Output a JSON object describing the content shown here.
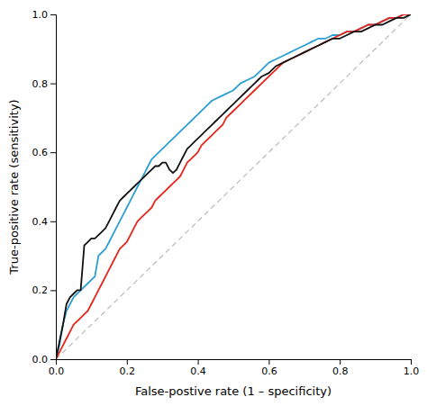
{
  "chart_data": {
    "type": "line",
    "xlabel": "False-postive rate (1 – specificity)",
    "ylabel": "True-positive rate (sensitivity)",
    "xlim": [
      0,
      1.0
    ],
    "ylim": [
      0,
      1.0
    ],
    "xticks": [
      {
        "value": 0,
        "label": "0.0"
      },
      {
        "value": 0.2,
        "label": "0.2"
      },
      {
        "value": 0.4,
        "label": "0.4"
      },
      {
        "value": 0.6,
        "label": "0.6"
      },
      {
        "value": 0.8,
        "label": "0.8"
      },
      {
        "value": 1.0,
        "label": "1.0"
      }
    ],
    "yticks": [
      {
        "value": 0,
        "label": "0.0"
      },
      {
        "value": 0.2,
        "label": "0.2"
      },
      {
        "value": 0.4,
        "label": "0.4"
      },
      {
        "value": 0.6,
        "label": "0.6"
      },
      {
        "value": 0.8,
        "label": "0.8"
      },
      {
        "value": 1.0,
        "label": "1.0"
      }
    ],
    "grid": false,
    "series": [
      {
        "color": "#bbbbbb",
        "line_style": "dashed",
        "x": [
          0,
          1
        ],
        "values": [
          0,
          1
        ]
      },
      {
        "color": "#2b9fd4",
        "line_style": "solid",
        "x": [
          0.0,
          0.01,
          0.02,
          0.03,
          0.04,
          0.05,
          0.06,
          0.07,
          0.08,
          0.09,
          0.1,
          0.11,
          0.12,
          0.13,
          0.14,
          0.15,
          0.16,
          0.17,
          0.18,
          0.19,
          0.2,
          0.21,
          0.22,
          0.23,
          0.24,
          0.25,
          0.26,
          0.27,
          0.28,
          0.29,
          0.3,
          0.31,
          0.32,
          0.33,
          0.34,
          0.35,
          0.36,
          0.37,
          0.38,
          0.39,
          0.4,
          0.42,
          0.44,
          0.46,
          0.48,
          0.5,
          0.52,
          0.54,
          0.56,
          0.58,
          0.6,
          0.62,
          0.64,
          0.66,
          0.68,
          0.7,
          0.72,
          0.74,
          0.76,
          0.78,
          0.8,
          0.82,
          0.84,
          0.86,
          0.88,
          0.9,
          0.92,
          0.94,
          0.96,
          0.98,
          1.0
        ],
        "values": [
          0.0,
          0.04,
          0.1,
          0.14,
          0.16,
          0.18,
          0.19,
          0.2,
          0.21,
          0.22,
          0.23,
          0.24,
          0.3,
          0.31,
          0.32,
          0.34,
          0.36,
          0.38,
          0.4,
          0.42,
          0.44,
          0.46,
          0.48,
          0.5,
          0.52,
          0.54,
          0.56,
          0.58,
          0.59,
          0.6,
          0.61,
          0.62,
          0.63,
          0.64,
          0.65,
          0.66,
          0.67,
          0.68,
          0.69,
          0.7,
          0.71,
          0.73,
          0.75,
          0.76,
          0.77,
          0.78,
          0.8,
          0.81,
          0.82,
          0.84,
          0.86,
          0.87,
          0.88,
          0.89,
          0.9,
          0.91,
          0.92,
          0.93,
          0.93,
          0.94,
          0.94,
          0.95,
          0.95,
          0.96,
          0.97,
          0.97,
          0.98,
          0.99,
          0.99,
          1.0,
          1.0
        ]
      },
      {
        "color": "#e8231a",
        "line_style": "solid",
        "x": [
          0.0,
          0.01,
          0.02,
          0.03,
          0.04,
          0.05,
          0.06,
          0.07,
          0.08,
          0.09,
          0.1,
          0.11,
          0.12,
          0.13,
          0.14,
          0.15,
          0.16,
          0.17,
          0.18,
          0.19,
          0.2,
          0.21,
          0.22,
          0.23,
          0.24,
          0.25,
          0.26,
          0.27,
          0.28,
          0.29,
          0.3,
          0.31,
          0.32,
          0.33,
          0.34,
          0.35,
          0.36,
          0.37,
          0.38,
          0.39,
          0.4,
          0.41,
          0.42,
          0.43,
          0.44,
          0.45,
          0.46,
          0.47,
          0.48,
          0.5,
          0.52,
          0.54,
          0.56,
          0.58,
          0.6,
          0.62,
          0.64,
          0.66,
          0.68,
          0.7,
          0.72,
          0.74,
          0.76,
          0.78,
          0.8,
          0.82,
          0.84,
          0.86,
          0.88,
          0.9,
          0.92,
          0.94,
          0.96,
          0.98,
          1.0
        ],
        "values": [
          0.0,
          0.02,
          0.04,
          0.06,
          0.08,
          0.1,
          0.11,
          0.12,
          0.13,
          0.14,
          0.16,
          0.18,
          0.2,
          0.22,
          0.24,
          0.26,
          0.28,
          0.3,
          0.32,
          0.33,
          0.34,
          0.36,
          0.38,
          0.4,
          0.41,
          0.42,
          0.43,
          0.44,
          0.46,
          0.47,
          0.48,
          0.49,
          0.5,
          0.51,
          0.52,
          0.53,
          0.55,
          0.57,
          0.58,
          0.59,
          0.6,
          0.62,
          0.63,
          0.64,
          0.65,
          0.66,
          0.67,
          0.68,
          0.7,
          0.72,
          0.74,
          0.76,
          0.78,
          0.8,
          0.82,
          0.84,
          0.86,
          0.87,
          0.88,
          0.89,
          0.9,
          0.91,
          0.92,
          0.93,
          0.94,
          0.95,
          0.95,
          0.96,
          0.97,
          0.97,
          0.98,
          0.99,
          0.99,
          1.0,
          1.0
        ]
      },
      {
        "color": "#111111",
        "line_style": "solid",
        "x": [
          0.0,
          0.01,
          0.02,
          0.03,
          0.04,
          0.05,
          0.06,
          0.07,
          0.08,
          0.09,
          0.1,
          0.11,
          0.12,
          0.13,
          0.14,
          0.15,
          0.16,
          0.17,
          0.18,
          0.19,
          0.2,
          0.21,
          0.22,
          0.23,
          0.24,
          0.25,
          0.26,
          0.27,
          0.28,
          0.29,
          0.3,
          0.31,
          0.32,
          0.33,
          0.34,
          0.35,
          0.36,
          0.37,
          0.38,
          0.39,
          0.4,
          0.41,
          0.42,
          0.43,
          0.44,
          0.45,
          0.46,
          0.47,
          0.48,
          0.49,
          0.5,
          0.52,
          0.54,
          0.55,
          0.56,
          0.57,
          0.58,
          0.6,
          0.62,
          0.64,
          0.66,
          0.68,
          0.7,
          0.72,
          0.74,
          0.76,
          0.78,
          0.8,
          0.82,
          0.84,
          0.86,
          0.88,
          0.9,
          0.92,
          0.94,
          0.96,
          0.98,
          1.0
        ],
        "values": [
          0.0,
          0.05,
          0.1,
          0.16,
          0.18,
          0.19,
          0.2,
          0.2,
          0.33,
          0.34,
          0.35,
          0.35,
          0.36,
          0.37,
          0.38,
          0.4,
          0.42,
          0.44,
          0.46,
          0.47,
          0.48,
          0.49,
          0.5,
          0.51,
          0.52,
          0.53,
          0.54,
          0.55,
          0.56,
          0.56,
          0.57,
          0.57,
          0.55,
          0.54,
          0.55,
          0.57,
          0.59,
          0.61,
          0.62,
          0.63,
          0.64,
          0.65,
          0.66,
          0.67,
          0.68,
          0.69,
          0.7,
          0.71,
          0.72,
          0.73,
          0.74,
          0.76,
          0.78,
          0.79,
          0.8,
          0.81,
          0.82,
          0.83,
          0.85,
          0.86,
          0.87,
          0.88,
          0.89,
          0.9,
          0.91,
          0.92,
          0.93,
          0.93,
          0.94,
          0.95,
          0.95,
          0.96,
          0.97,
          0.97,
          0.98,
          0.99,
          0.99,
          1.0
        ]
      }
    ]
  }
}
